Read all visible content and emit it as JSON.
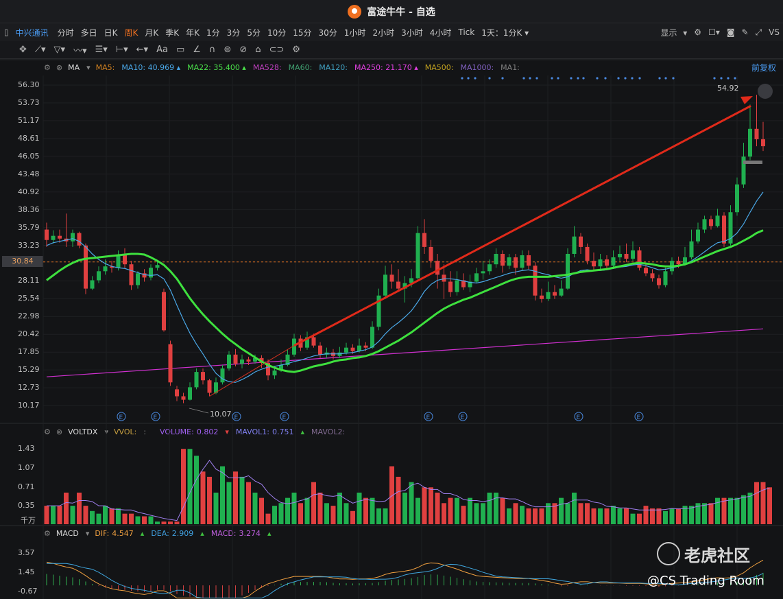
{
  "window": {
    "title": "富途牛牛 - 自选"
  },
  "toolbar": {
    "stock": "中兴通讯",
    "timeframes": [
      "分时",
      "多日",
      "日K",
      "周K",
      "月K",
      "季K",
      "年K",
      "1分",
      "3分",
      "5分",
      "10分",
      "15分",
      "30分",
      "1小时",
      "2小时",
      "3小时",
      "4小时",
      "Tick",
      "1天：1分K"
    ],
    "active": "周K",
    "display_label": "显示"
  },
  "ma_legend": {
    "name": "MA",
    "items": [
      {
        "label": "MA5:",
        "value": "",
        "color": "#d08020"
      },
      {
        "label": "MA10:",
        "value": "40.969",
        "color": "#4aa8e8"
      },
      {
        "label": "MA22:",
        "value": "35.400",
        "color": "#4ae04a"
      },
      {
        "label": "MA528:",
        "value": "",
        "color": "#c040c0"
      },
      {
        "label": "MA60:",
        "value": "",
        "color": "#40a070"
      },
      {
        "label": "MA120:",
        "value": "",
        "color": "#40a0c0"
      },
      {
        "label": "MA250:",
        "value": "21.170",
        "color": "#e040e0"
      },
      {
        "label": "MA500:",
        "value": "",
        "color": "#c0a020"
      },
      {
        "label": "MA1000:",
        "value": "",
        "color": "#8060c0"
      },
      {
        "label": "MA1:",
        "value": "",
        "color": "#808080"
      }
    ]
  },
  "adjust_label": "前复权",
  "price_axis": [
    "56.30",
    "53.73",
    "51.17",
    "48.61",
    "46.05",
    "43.48",
    "40.92",
    "38.36",
    "35.79",
    "33.23",
    "30.84",
    "28.11",
    "25.54",
    "22.98",
    "20.42",
    "17.85",
    "15.29",
    "12.73",
    "10.17"
  ],
  "current_price": "30.84",
  "high_label": "54.92",
  "low_label": "10.07",
  "earnings_marker": "E",
  "vol_legend": {
    "name": "VOLTDX",
    "vvol": "VVOL:",
    "colon": ":",
    "volume_label": "VOLUME:",
    "volume_value": "0.802",
    "mavol1_label": "MAVOL1:",
    "mavol1_value": "0.751",
    "mavol2_label": "MAVOL2:"
  },
  "vol_axis": [
    "1.43",
    "1.07",
    "0.71",
    "0.35"
  ],
  "vol_unit": "千万",
  "macd_legend": {
    "name": "MACD",
    "dif_label": "DIF:",
    "dif_value": "4.547",
    "dea_label": "DEA:",
    "dea_value": "2.909",
    "macd_label": "MACD:",
    "macd_value": "3.274"
  },
  "macd_axis": [
    "3.57",
    "1.45",
    "-0.67"
  ],
  "watermark": {
    "line1": "老虎社区",
    "line2": "@CS Trading Room"
  },
  "chart_data": {
    "type": "candlestick",
    "price_range": [
      10.17,
      56.3
    ],
    "candles": [
      [
        35.5,
        34.0,
        36.5,
        33.0
      ],
      [
        34.0,
        34.6,
        35.4,
        33.5
      ],
      [
        34.6,
        34.2,
        35.5,
        33.6
      ],
      [
        34.2,
        33.8,
        37.8,
        33.0
      ],
      [
        33.8,
        35.0,
        35.5,
        33.0
      ],
      [
        35.0,
        33.2,
        35.2,
        32.8
      ],
      [
        33.2,
        27.0,
        33.5,
        26.2
      ],
      [
        27.0,
        28.2,
        28.8,
        26.8
      ],
      [
        28.2,
        29.5,
        30.2,
        27.8
      ],
      [
        29.5,
        30.2,
        31.2,
        29.0
      ],
      [
        30.2,
        30.0,
        31.0,
        29.3
      ],
      [
        30.0,
        31.8,
        32.5,
        29.6
      ],
      [
        31.8,
        30.5,
        32.8,
        30.0
      ],
      [
        30.5,
        27.5,
        31.0,
        26.8
      ],
      [
        27.5,
        29.2,
        29.5,
        27.0
      ],
      [
        29.2,
        28.6,
        29.8,
        28.0
      ],
      [
        28.6,
        30.0,
        30.5,
        28.2
      ],
      [
        30.0,
        30.4,
        31.0,
        29.6
      ],
      [
        26.5,
        21.0,
        27.0,
        20.8
      ],
      [
        19.0,
        13.5,
        19.5,
        13.0
      ],
      [
        12.5,
        11.5,
        13.0,
        10.8
      ],
      [
        11.5,
        11.0,
        12.0,
        10.5
      ],
      [
        11.0,
        12.8,
        13.5,
        10.9
      ],
      [
        12.8,
        15.0,
        15.5,
        12.5
      ],
      [
        15.0,
        13.8,
        15.5,
        13.2
      ],
      [
        13.8,
        12.0,
        14.0,
        11.5
      ],
      [
        12.0,
        13.5,
        14.2,
        11.8
      ],
      [
        13.5,
        15.5,
        16.0,
        13.2
      ],
      [
        15.5,
        17.5,
        18.0,
        15.2
      ],
      [
        17.5,
        16.2,
        18.3,
        15.8
      ],
      [
        16.2,
        16.8,
        17.5,
        15.5
      ],
      [
        16.8,
        16.5,
        17.2,
        16.0
      ],
      [
        16.5,
        17.0,
        17.5,
        16.2
      ],
      [
        17.0,
        16.3,
        17.4,
        15.6
      ],
      [
        16.3,
        14.5,
        16.8,
        13.8
      ],
      [
        14.5,
        15.2,
        15.8,
        14.0
      ],
      [
        15.2,
        16.0,
        16.8,
        15.0
      ],
      [
        16.0,
        17.5,
        18.2,
        15.8
      ],
      [
        17.5,
        19.8,
        20.5,
        17.2
      ],
      [
        19.8,
        18.5,
        20.3,
        18.0
      ],
      [
        18.5,
        20.0,
        20.8,
        18.2
      ],
      [
        20.0,
        18.8,
        20.5,
        18.5
      ],
      [
        18.8,
        17.5,
        19.3,
        17.0
      ],
      [
        17.5,
        17.8,
        18.5,
        17.0
      ],
      [
        17.8,
        17.3,
        18.3,
        16.8
      ],
      [
        17.3,
        17.8,
        18.6,
        17.0
      ],
      [
        17.8,
        18.5,
        19.2,
        17.5
      ],
      [
        18.5,
        18.0,
        19.0,
        17.6
      ],
      [
        18.0,
        18.8,
        19.8,
        17.8
      ],
      [
        18.8,
        18.5,
        19.3,
        18.0
      ],
      [
        18.5,
        21.5,
        22.3,
        18.3
      ],
      [
        21.5,
        26.0,
        27.0,
        21.0
      ],
      [
        26.0,
        29.0,
        30.3,
        25.5
      ],
      [
        29.0,
        28.0,
        30.5,
        27.0
      ],
      [
        28.0,
        27.0,
        29.8,
        26.5
      ],
      [
        27.0,
        27.8,
        28.8,
        25.0
      ],
      [
        27.8,
        28.5,
        29.8,
        27.2
      ],
      [
        28.5,
        35.0,
        36.0,
        28.2
      ],
      [
        35.0,
        33.0,
        37.0,
        32.0
      ],
      [
        33.0,
        31.0,
        34.0,
        30.0
      ],
      [
        31.0,
        29.0,
        32.0,
        27.0
      ],
      [
        29.0,
        28.0,
        30.5,
        25.5
      ],
      [
        28.0,
        26.5,
        29.5,
        25.8
      ],
      [
        26.5,
        28.2,
        29.5,
        26.0
      ],
      [
        28.2,
        27.2,
        29.2,
        26.8
      ],
      [
        27.2,
        28.0,
        29.0,
        26.5
      ],
      [
        28.0,
        29.2,
        30.0,
        27.8
      ],
      [
        29.2,
        29.5,
        31.0,
        28.3
      ],
      [
        29.5,
        30.5,
        31.2,
        29.0
      ],
      [
        30.5,
        32.0,
        32.8,
        30.0
      ],
      [
        32.0,
        30.3,
        32.5,
        29.3
      ],
      [
        30.3,
        31.5,
        32.0,
        29.8
      ],
      [
        31.5,
        30.0,
        32.0,
        29.0
      ],
      [
        30.0,
        31.8,
        32.5,
        29.6
      ],
      [
        31.8,
        30.3,
        32.5,
        29.8
      ],
      [
        30.3,
        26.0,
        30.8,
        25.3
      ],
      [
        26.0,
        25.5,
        27.0,
        25.0
      ],
      [
        25.5,
        26.5,
        28.0,
        25.2
      ],
      [
        26.5,
        26.0,
        27.5,
        25.5
      ],
      [
        26.0,
        27.0,
        28.2,
        25.8
      ],
      [
        27.0,
        32.0,
        32.8,
        26.8
      ],
      [
        32.0,
        34.5,
        36.0,
        31.5
      ],
      [
        34.5,
        33.0,
        35.0,
        32.0
      ],
      [
        33.0,
        31.0,
        33.5,
        30.5
      ],
      [
        31.0,
        30.2,
        32.2,
        29.6
      ],
      [
        30.2,
        31.2,
        32.0,
        29.8
      ],
      [
        31.2,
        30.3,
        31.8,
        29.8
      ],
      [
        30.3,
        31.5,
        32.5,
        30.0
      ],
      [
        31.5,
        32.0,
        33.2,
        31.0
      ],
      [
        32.0,
        31.3,
        33.5,
        30.8
      ],
      [
        31.3,
        32.5,
        33.8,
        31.0
      ],
      [
        32.5,
        30.0,
        33.0,
        29.6
      ],
      [
        30.0,
        29.2,
        30.5,
        28.8
      ],
      [
        29.2,
        28.5,
        29.8,
        28.0
      ],
      [
        28.5,
        27.5,
        29.0,
        27.0
      ],
      [
        27.5,
        29.5,
        30.0,
        27.2
      ],
      [
        29.5,
        31.0,
        31.5,
        29.0
      ],
      [
        31.0,
        30.5,
        31.6,
        30.0
      ],
      [
        30.5,
        31.5,
        33.0,
        30.3
      ],
      [
        31.5,
        33.8,
        35.5,
        31.2
      ],
      [
        33.8,
        35.5,
        36.5,
        33.5
      ],
      [
        35.5,
        37.0,
        37.5,
        35.0
      ],
      [
        37.0,
        36.0,
        37.5,
        35.5
      ],
      [
        36.0,
        37.5,
        38.5,
        35.8
      ],
      [
        37.5,
        33.5,
        38.0,
        33.0
      ],
      [
        33.5,
        38.0,
        39.0,
        33.2
      ],
      [
        38.0,
        42.0,
        43.0,
        37.5
      ],
      [
        42.0,
        46.0,
        48.0,
        41.5
      ],
      [
        46.0,
        50.0,
        53.5,
        45.5
      ],
      [
        50.0,
        48.5,
        54.9,
        47.5
      ],
      [
        48.5,
        47.5,
        51.0,
        46.8
      ]
    ],
    "ma10": [
      33.2,
      33.6,
      33.8,
      34.0,
      34.2,
      33.8,
      33.0,
      32.0,
      31.2,
      30.6,
      30.2,
      30.0,
      29.9,
      29.6,
      29.3,
      29.0,
      28.9,
      29.0,
      28.4,
      26.8,
      24.6,
      22.5,
      20.6,
      19.0,
      17.6,
      16.1,
      14.8,
      14.0,
      13.6,
      13.5,
      13.9,
      14.4,
      15.0,
      15.4,
      15.7,
      15.8,
      16.0,
      16.2,
      16.5,
      16.7,
      17.0,
      17.3,
      17.5,
      17.6,
      17.6,
      17.6,
      17.7,
      17.8,
      18.0,
      18.2,
      18.6,
      19.4,
      20.5,
      21.4,
      22.1,
      22.9,
      23.8,
      25.1,
      26.6,
      27.6,
      28.2,
      28.4,
      28.4,
      28.3,
      28.1,
      27.9,
      27.8,
      28.0,
      28.3,
      28.6,
      28.9,
      29.2,
      29.4,
      29.6,
      29.7,
      29.5,
      29.2,
      29.0,
      28.7,
      28.5,
      28.7,
      29.2,
      29.6,
      29.7,
      29.6,
      29.6,
      29.7,
      29.9,
      30.1,
      30.2,
      30.4,
      30.5,
      30.3,
      30.0,
      29.7,
      29.8,
      30.0,
      30.2,
      30.5,
      31.0,
      31.6,
      32.3,
      33.0,
      33.6,
      33.8,
      34.2,
      35.0,
      36.3,
      38.0,
      39.6,
      40.9
    ],
    "ma22": [
      28.2,
      28.9,
      29.6,
      30.2,
      30.7,
      31.1,
      31.3,
      31.4,
      31.5,
      31.6,
      31.7,
      31.8,
      31.9,
      32.0,
      32.0,
      31.9,
      31.5,
      31.0,
      30.4,
      29.5,
      28.4,
      27.0,
      25.6,
      24.4,
      23.3,
      22.3,
      21.4,
      20.5,
      19.7,
      19.0,
      18.3,
      17.7,
      17.1,
      16.5,
      16.0,
      15.6,
      15.3,
      15.1,
      15.0,
      15.2,
      15.5,
      15.8,
      16.0,
      16.2,
      16.5,
      16.7,
      16.8,
      17.0,
      17.1,
      17.3,
      17.6,
      18.0,
      18.5,
      19.0,
      19.5,
      20.1,
      20.7,
      21.4,
      22.1,
      22.8,
      23.5,
      24.1,
      24.6,
      25.0,
      25.4,
      25.7,
      26.1,
      26.5,
      26.9,
      27.3,
      27.7,
      28.1,
      28.4,
      28.6,
      28.7,
      28.7,
      28.7,
      28.7,
      28.8,
      28.9,
      29.0,
      29.2,
      29.4,
      29.5,
      29.6,
      29.7,
      29.8,
      30.0,
      30.2,
      30.4,
      30.6,
      30.7,
      30.6,
      30.5,
      30.3,
      30.2,
      30.2,
      30.3,
      30.5,
      30.8,
      31.2,
      31.6,
      32.0,
      32.4,
      32.7,
      33.0,
      33.4,
      33.9,
      34.4,
      35.0,
      35.4
    ],
    "ma250": [
      14.3,
      21.2
    ],
    "volume": [
      0.35,
      0.35,
      0.35,
      0.6,
      0.35,
      0.6,
      0.35,
      0.25,
      0.2,
      0.35,
      0.3,
      0.3,
      0.2,
      0.2,
      0.15,
      0.15,
      0.15,
      0.05,
      0.05,
      0.05,
      0.05,
      1.43,
      1.43,
      1.3,
      1.0,
      0.9,
      0.6,
      1.1,
      0.8,
      1.0,
      0.9,
      0.8,
      0.6,
      0.5,
      0.2,
      0.35,
      0.4,
      0.5,
      0.6,
      0.4,
      0.5,
      0.8,
      0.6,
      0.4,
      0.35,
      0.6,
      0.4,
      0.25,
      0.6,
      0.5,
      0.5,
      0.3,
      0.3,
      1.1,
      0.9,
      0.6,
      0.8,
      0.5,
      0.7,
      0.7,
      0.6,
      0.4,
      0.5,
      0.5,
      0.35,
      0.5,
      0.4,
      0.4,
      0.6,
      0.6,
      0.5,
      0.3,
      0.4,
      0.35,
      0.3,
      0.3,
      0.3,
      0.4,
      0.4,
      0.5,
      0.4,
      0.6,
      0.4,
      0.4,
      0.3,
      0.3,
      0.3,
      0.35,
      0.3,
      0.3,
      0.2,
      0.2,
      0.35,
      0.3,
      0.3,
      0.25,
      0.3,
      0.3,
      0.35,
      0.35,
      0.4,
      0.4,
      0.4,
      0.5,
      0.5,
      0.5,
      0.5,
      0.55,
      0.6,
      0.8,
      0.8,
      0.7
    ],
    "macd_range": [
      -1.5,
      4.0
    ],
    "dif": [
      3.9,
      3.8,
      3.75,
      3.7,
      3.65,
      3.5,
      3.3,
      3.0,
      2.8,
      2.6,
      2.4,
      2.3,
      2.2,
      2.1,
      1.9,
      1.7,
      1.5,
      1.3,
      1.1,
      0.8,
      0.4,
      -0.1,
      -0.5
    ],
    "dea": [
      3.9,
      3.85,
      3.8,
      3.75,
      3.7,
      3.6,
      3.5,
      3.35,
      3.2,
      3.0,
      2.85,
      2.7,
      2.55,
      2.4,
      2.25,
      2.1,
      1.95,
      1.8,
      1.6,
      1.4,
      1.1,
      0.8,
      0.4
    ]
  }
}
